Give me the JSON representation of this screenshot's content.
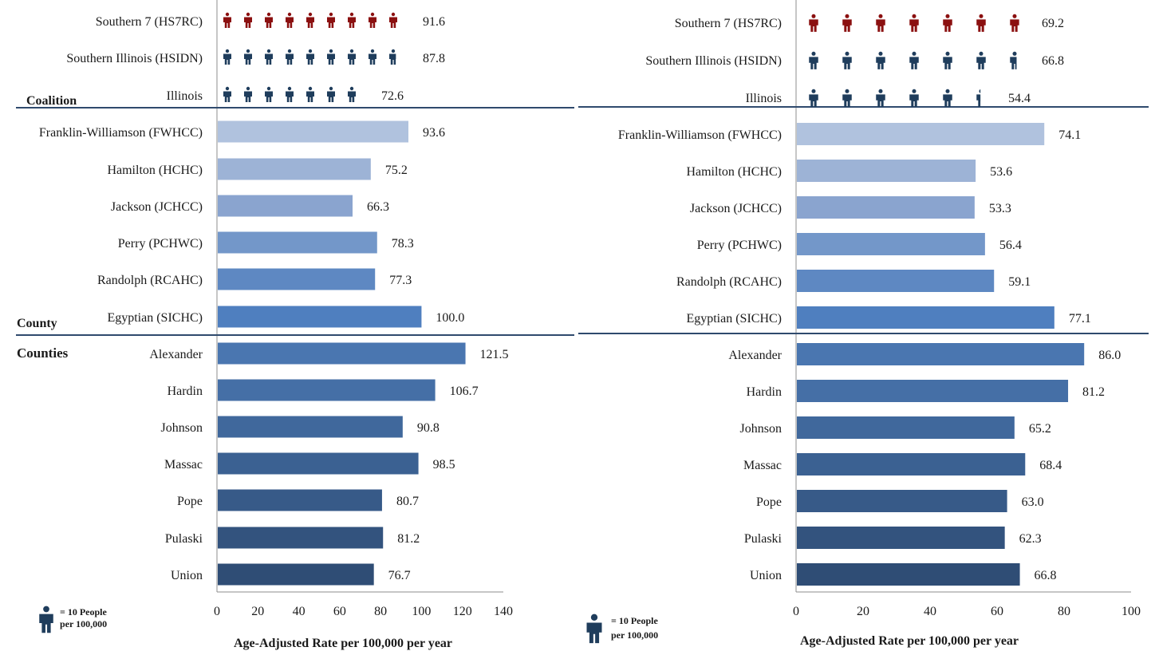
{
  "colors": {
    "red_icon": "#8b1010",
    "blue_icon": "#1f3d5c",
    "divider": "#2f4a6d",
    "axis": "#8c8c8c",
    "legend_icon": "#1f3d5c"
  },
  "legend_label_line1": "= 10 People",
  "legend_label_line2": "per 100,000",
  "legend_icon_name": "person-icon",
  "section_labels": {
    "coalition": "Coalition",
    "county": "County",
    "counties": "Counties"
  },
  "chart_data": [
    {
      "type": "bar",
      "orientation": "horizontal",
      "xlabel": "Age-Adjusted Rate per 100,000 per year",
      "xlim": [
        0,
        140
      ],
      "xticks": [
        0,
        20,
        40,
        60,
        80,
        100,
        120,
        140
      ],
      "icon_unit": 10,
      "coalition": [
        {
          "label": "Southern 7 (HS7RC)",
          "value": 91.6,
          "value_label": "91.6",
          "color": "#8b1010"
        },
        {
          "label": "Southern Illinois (HSIDN)",
          "value": 87.8,
          "value_label": "87.8",
          "color": "#1f3d5c"
        },
        {
          "label": "Illinois",
          "value": 72.6,
          "value_label": "72.6",
          "color": "#1f3d5c"
        }
      ],
      "county": [
        {
          "label": "Franklin-Williamson (FWHCC)",
          "value": 93.6,
          "value_label": "93.6",
          "color": "#b0c2de"
        },
        {
          "label": "Hamilton (HCHC)",
          "value": 75.2,
          "value_label": "75.2",
          "color": "#9db3d6"
        },
        {
          "label": "Jackson (JCHCC)",
          "value": 66.3,
          "value_label": "66.3",
          "color": "#8aa4cf"
        },
        {
          "label": "Perry (PCHWC)",
          "value": 78.3,
          "value_label": "78.3",
          "color": "#7397c9"
        },
        {
          "label": "Randolph (RCAHC)",
          "value": 77.3,
          "value_label": "77.3",
          "color": "#5e88c2"
        },
        {
          "label": "Egyptian (SICHC)",
          "value": 100.0,
          "value_label": "100.0",
          "color": "#4f7fbf"
        }
      ],
      "counties": [
        {
          "label": "Alexander",
          "value": 121.5,
          "value_label": "121.5",
          "color": "#4a76b0"
        },
        {
          "label": "Hardin",
          "value": 106.7,
          "value_label": "106.7",
          "color": "#456fa6"
        },
        {
          "label": "Johnson",
          "value": 90.8,
          "value_label": "90.8",
          "color": "#40689c"
        },
        {
          "label": "Massac",
          "value": 98.5,
          "value_label": "98.5",
          "color": "#3b6192"
        },
        {
          "label": "Pope",
          "value": 80.7,
          "value_label": "80.7",
          "color": "#375a88"
        },
        {
          "label": "Pulaski",
          "value": 81.2,
          "value_label": "81.2",
          "color": "#33537e"
        },
        {
          "label": "Union",
          "value": 76.7,
          "value_label": "76.7",
          "color": "#2f4d75"
        }
      ]
    },
    {
      "type": "bar",
      "orientation": "horizontal",
      "xlabel": "Age-Adjusted Rate per 100,000 per year",
      "xlim": [
        0,
        100
      ],
      "xticks": [
        0,
        20,
        40,
        60,
        80,
        100
      ],
      "icon_unit": 10,
      "coalition": [
        {
          "label": "Southern 7 (HS7RC)",
          "value": 69.2,
          "value_label": "69.2",
          "color": "#8b1010"
        },
        {
          "label": "Southern Illinois (HSIDN)",
          "value": 66.8,
          "value_label": "66.8",
          "color": "#1f3d5c"
        },
        {
          "label": "Illinois",
          "value": 54.4,
          "value_label": "54.4",
          "color": "#1f3d5c"
        }
      ],
      "county": [
        {
          "label": "Franklin-Williamson (FWHCC)",
          "value": 74.1,
          "value_label": "74.1",
          "color": "#b0c2de"
        },
        {
          "label": "Hamilton (HCHC)",
          "value": 53.6,
          "value_label": "53.6",
          "color": "#9db3d6"
        },
        {
          "label": "Jackson (JCHCC)",
          "value": 53.3,
          "value_label": "53.3",
          "color": "#8aa4cf"
        },
        {
          "label": "Perry (PCHWC)",
          "value": 56.4,
          "value_label": "56.4",
          "color": "#7397c9"
        },
        {
          "label": "Randolph (RCAHC)",
          "value": 59.1,
          "value_label": "59.1",
          "color": "#5e88c2"
        },
        {
          "label": "Egyptian (SICHC)",
          "value": 77.1,
          "value_label": "77.1",
          "color": "#4f7fbf"
        }
      ],
      "counties": [
        {
          "label": "Alexander",
          "value": 86.0,
          "value_label": "86.0",
          "color": "#4a76b0"
        },
        {
          "label": "Hardin",
          "value": 81.2,
          "value_label": "81.2",
          "color": "#456fa6"
        },
        {
          "label": "Johnson",
          "value": 65.2,
          "value_label": "65.2",
          "color": "#40689c"
        },
        {
          "label": "Massac",
          "value": 68.4,
          "value_label": "68.4",
          "color": "#3b6192"
        },
        {
          "label": "Pope",
          "value": 63.0,
          "value_label": "63.0",
          "color": "#375a88"
        },
        {
          "label": "Pulaski",
          "value": 62.3,
          "value_label": "62.3",
          "color": "#33537e"
        },
        {
          "label": "Union",
          "value": 66.8,
          "value_label": "66.8",
          "color": "#2f4d75"
        }
      ]
    }
  ]
}
